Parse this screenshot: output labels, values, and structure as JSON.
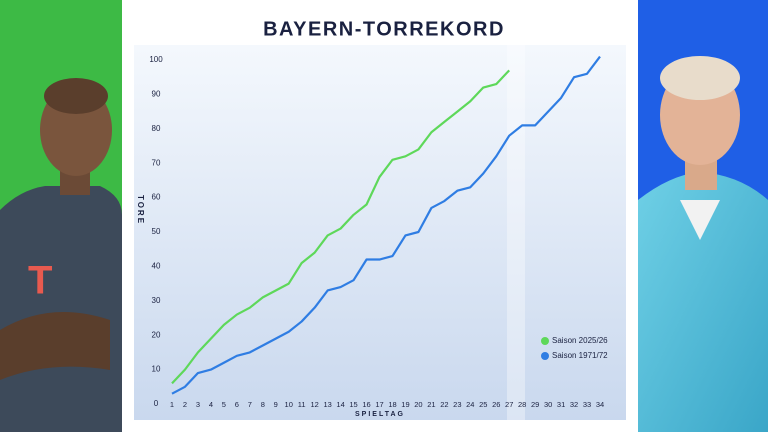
{
  "chart_data": {
    "type": "line",
    "title": "BAYERN-TORREKORD",
    "y_label": "TORE",
    "x_label": "SPIELTAG",
    "x": [
      1,
      2,
      3,
      4,
      5,
      6,
      7,
      8,
      9,
      10,
      11,
      12,
      13,
      14,
      15,
      16,
      17,
      18,
      19,
      20,
      21,
      22,
      23,
      24,
      25,
      26,
      27,
      28,
      29,
      30,
      31,
      32,
      33,
      34
    ],
    "xlim": [
      1,
      34
    ],
    "xticks": [
      1,
      2,
      3,
      4,
      5,
      6,
      7,
      8,
      9,
      10,
      11,
      12,
      13,
      14,
      15,
      16,
      17,
      18,
      19,
      20,
      21,
      22,
      23,
      24,
      25,
      26,
      27,
      28,
      29,
      30,
      31,
      32,
      33,
      34
    ],
    "ylim": [
      0,
      102
    ],
    "yticks": [
      0,
      10,
      20,
      30,
      40,
      50,
      60,
      70,
      80,
      90,
      100
    ],
    "legend": "lower right",
    "series": [
      {
        "name": "Saison 2025/26",
        "color": "#5ed85a",
        "values": [
          6,
          10,
          15,
          19,
          23,
          26,
          28,
          31,
          33,
          35,
          41,
          44,
          49,
          51,
          55,
          58,
          66,
          71,
          72,
          74,
          79,
          82,
          85,
          88,
          92,
          93,
          97,
          null,
          null,
          null,
          null,
          null,
          null,
          null
        ]
      },
      {
        "name": "Saison 1971/72",
        "color": "#2f7de3",
        "values": [
          3,
          5,
          9,
          10,
          12,
          14,
          15,
          17,
          19,
          21,
          24,
          28,
          33,
          34,
          36,
          42,
          42,
          43,
          49,
          50,
          57,
          59,
          62,
          63,
          67,
          72,
          78,
          81,
          81,
          85,
          89,
          95,
          96,
          101
        ]
      }
    ]
  }
}
